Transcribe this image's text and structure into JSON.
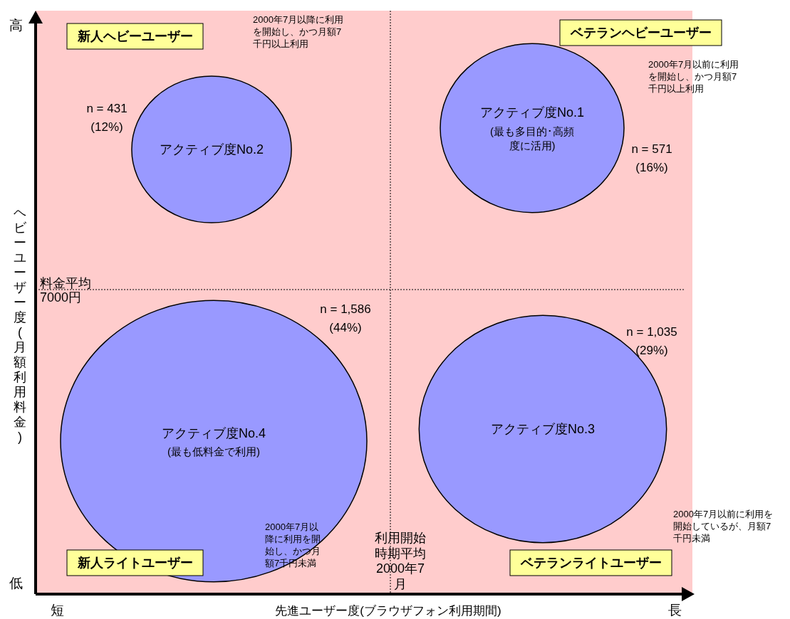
{
  "chart_data": {
    "type": "other",
    "xlabel": "先進ユーザー度(ブラウザフォン利用期間)",
    "ylabel": "ヘビーユーザー度(月額利用料金)",
    "categories": [
      "アクティブ度No.2",
      "アクティブ度No.1\n(最も多目的･高頻度に活用)",
      "アクティブ度No.4\n(最も低料金で利用)",
      "アクティブ度No.3"
    ],
    "values": [
      431,
      571,
      1586,
      1035
    ],
    "value_labels": [
      "n = 431\n(12%)",
      "n = 571\n(16%)",
      "n = 1,586\n(44%)",
      "n = 1,035\n(29%)"
    ],
    "colors": [
      "#9999ff",
      "#9999ff",
      "#9999ff",
      "#9999ff"
    ],
    "ref_lines": [
      {
        "axis": "y",
        "label": "料金平均\n7000円",
        "line_style": "dotted"
      },
      {
        "axis": "x",
        "label": "利用開始時期平均\n2000年7月",
        "line_style": "dotted"
      }
    ],
    "annotations": [
      "新人ヘビーユーザー",
      "ベテランヘビーユーザー",
      "新人ライトユーザー",
      "ベテランライトユーザー",
      "2000年7月以降に利用を開始し、かつ月額7千円以上利用",
      "2000年7月以前に利用を開始し、かつ月額7千円以上利用",
      "2000年7月以降に利用を開始し、かつ月額7千円未満",
      "2000年7月以前に利用を開始しているが、月額7千円未満",
      "高",
      "低",
      "短",
      "長"
    ]
  }
}
